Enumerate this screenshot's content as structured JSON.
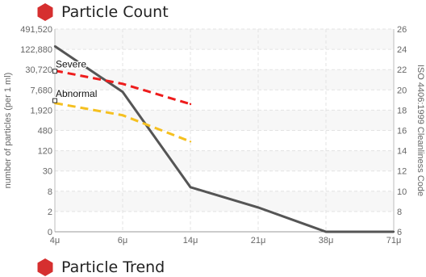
{
  "sections": {
    "top": {
      "title": "Particle Count",
      "icon": "red-hexagon-icon",
      "color": "#d62f2f"
    },
    "bottom": {
      "title": "Particle Trend",
      "icon": "red-hexagon-icon",
      "color": "#d62f2f"
    }
  },
  "chart_data": {
    "type": "line",
    "xlabel": "",
    "ylabel": "number of particles (per 1 ml)",
    "y2label": "ISO 4406:1999 Cleanliness Code",
    "categories": [
      "4μ",
      "6μ",
      "14μ",
      "21μ",
      "38μ",
      "71μ"
    ],
    "y_ticks": [
      "0",
      "2",
      "8",
      "30",
      "120",
      "480",
      "1,920",
      "7,680",
      "30,720",
      "122,880",
      "491,520"
    ],
    "y2_ticks": [
      "6",
      "8",
      "10",
      "12",
      "14",
      "16",
      "18",
      "20",
      "22",
      "24",
      "26"
    ],
    "y2lim": [
      6,
      26
    ],
    "grid": true,
    "series": [
      {
        "name": "",
        "color": "#555555",
        "style": "solid",
        "width": 3,
        "x": [
          0,
          1,
          2,
          3,
          4,
          5
        ],
        "values": [
          24.3,
          19.8,
          10.4,
          8.4,
          6,
          6
        ]
      },
      {
        "name": "",
        "color": "#ee1c1c",
        "style": "dashed",
        "width": 3,
        "x": [
          0,
          1,
          2
        ],
        "values": [
          21.9,
          20.6,
          18.6
        ]
      },
      {
        "name": "",
        "color": "#f5c020",
        "style": "dashed",
        "width": 3,
        "x": [
          0,
          1,
          2
        ],
        "values": [
          18.7,
          17.5,
          14.9
        ]
      }
    ],
    "annotations": [
      {
        "text": "Severe",
        "x": 0,
        "y": 22.2
      },
      {
        "text": "Abnormal",
        "x": 0,
        "y": 19.3
      }
    ]
  }
}
